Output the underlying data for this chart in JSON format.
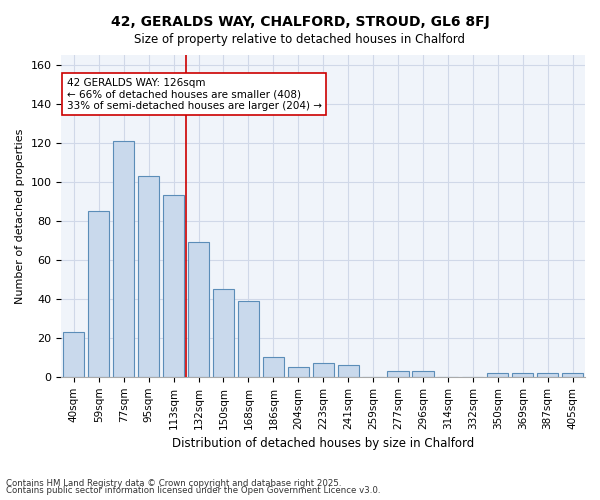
{
  "title1": "42, GERALDS WAY, CHALFORD, STROUD, GL6 8FJ",
  "title2": "Size of property relative to detached houses in Chalford",
  "xlabel": "Distribution of detached houses by size in Chalford",
  "ylabel": "Number of detached properties",
  "categories": [
    "40sqm",
    "59sqm",
    "77sqm",
    "95sqm",
    "113sqm",
    "132sqm",
    "150sqm",
    "168sqm",
    "186sqm",
    "204sqm",
    "223sqm",
    "241sqm",
    "259sqm",
    "277sqm",
    "296sqm",
    "314sqm",
    "332sqm",
    "350sqm",
    "369sqm",
    "387sqm",
    "405sqm"
  ],
  "values": [
    23,
    85,
    121,
    103,
    93,
    69,
    45,
    39,
    10,
    5,
    7,
    6,
    0,
    3,
    3,
    0,
    0,
    2,
    2,
    2,
    2
  ],
  "bar_color": "#c9d9ec",
  "bar_edge_color": "#5b8db8",
  "highlight_index": 5,
  "highlight_line_color": "#cc0000",
  "annotation_text": "42 GERALDS WAY: 126sqm\n← 66% of detached houses are smaller (408)\n33% of semi-detached houses are larger (204) →",
  "annotation_box_color": "#ffffff",
  "annotation_box_edge": "#cc0000",
  "footnote1": "Contains HM Land Registry data © Crown copyright and database right 2025.",
  "footnote2": "Contains public sector information licensed under the Open Government Licence v3.0.",
  "ylim": [
    0,
    165
  ],
  "yticks": [
    0,
    20,
    40,
    60,
    80,
    100,
    120,
    140,
    160
  ],
  "grid_color": "#d0d8e8",
  "background_color": "#f0f4fa",
  "fig_background": "#ffffff"
}
